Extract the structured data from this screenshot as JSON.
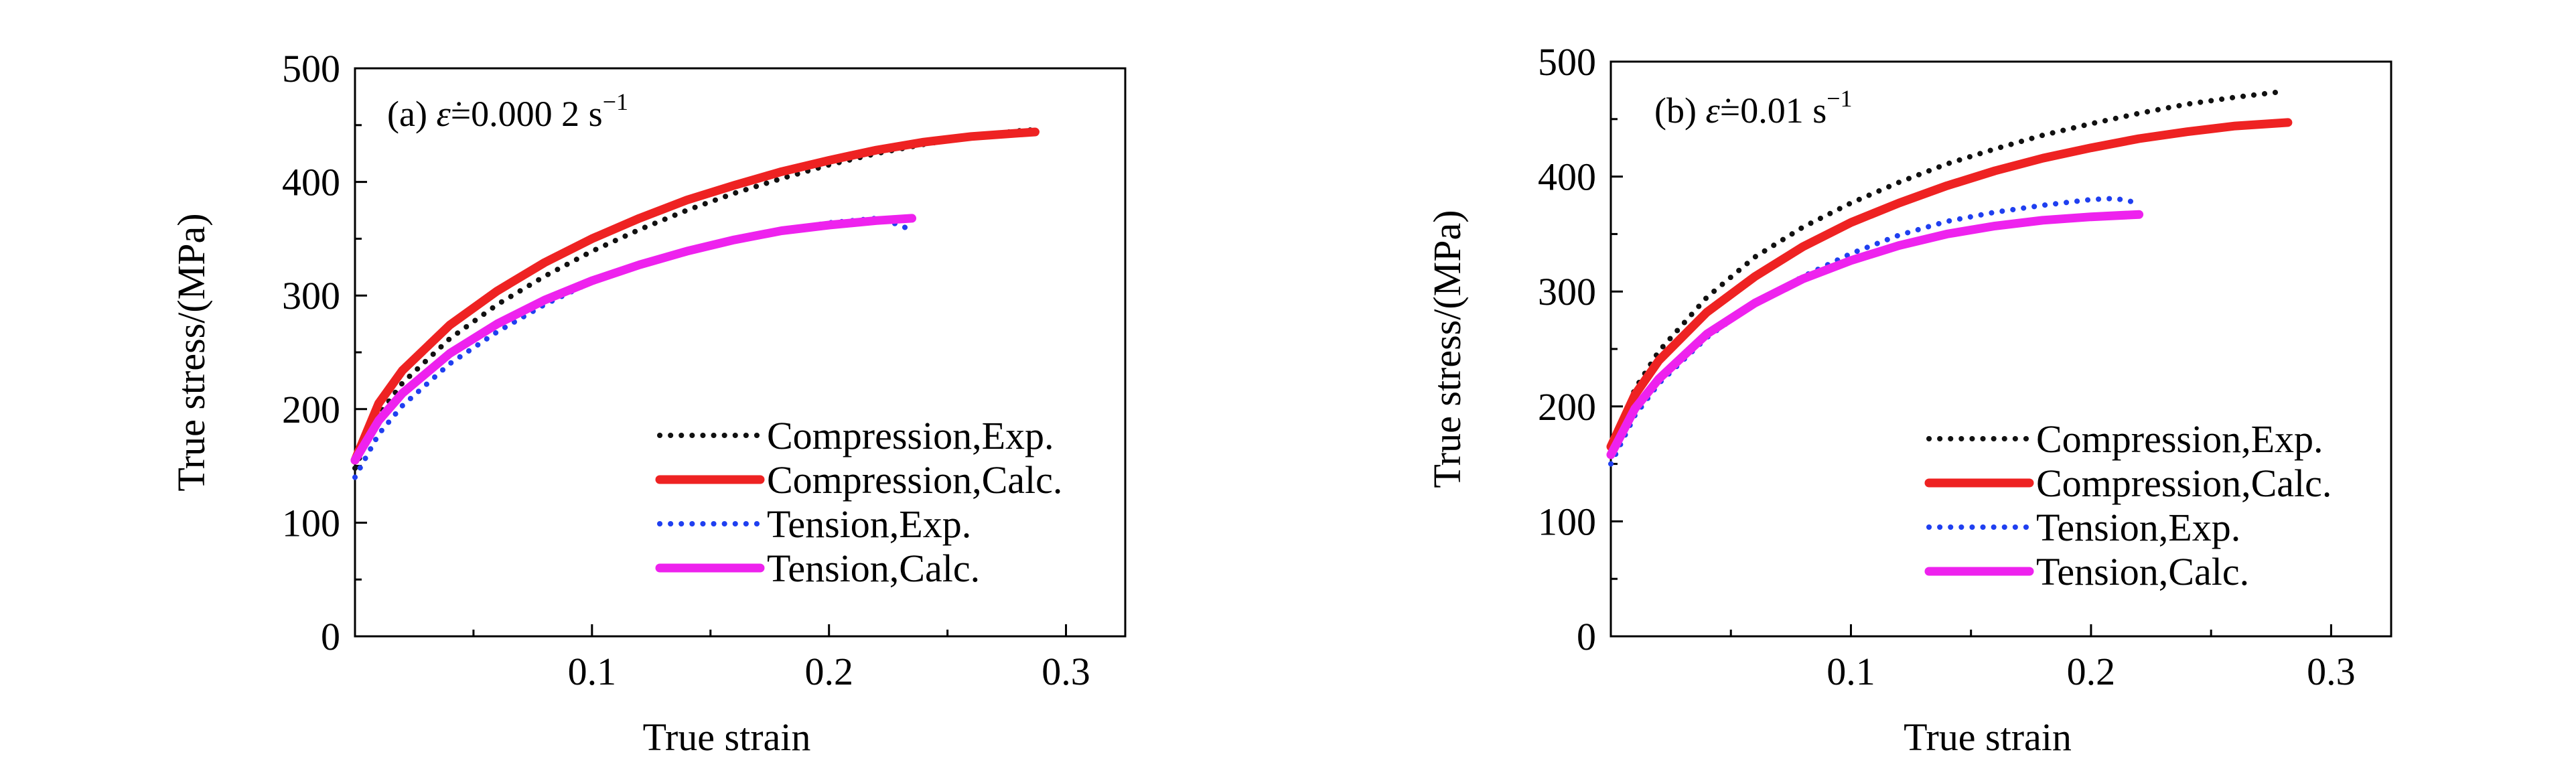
{
  "chart_data": [
    {
      "type": "line",
      "panel_label": "(a) ",
      "title_rate_symbol": "ε̇",
      "title_rate_value": "=0.000 2 s",
      "title_rate_exp": "−1",
      "xlabel": "True strain",
      "ylabel": "True stress/(MPa)",
      "xlim": [
        0,
        0.325
      ],
      "ylim": [
        0,
        500
      ],
      "xticks": [
        0.1,
        0.2,
        0.3
      ],
      "xtick_labels": [
        "0.1",
        "0.2",
        "0.3"
      ],
      "yticks": [
        0,
        100,
        200,
        300,
        400,
        500
      ],
      "ytick_labels": [
        "0",
        "100",
        "200",
        "300",
        "400",
        "500"
      ],
      "grid": false,
      "legend_position": "bottom-right",
      "series": [
        {
          "name": "Compression,Exp.",
          "style": "dotted",
          "color": "#111111",
          "x": [
            0.0,
            0.01,
            0.02,
            0.04,
            0.06,
            0.08,
            0.1,
            0.12,
            0.14,
            0.16,
            0.18,
            0.2,
            0.22,
            0.24,
            0.26,
            0.28,
            0.287
          ],
          "y": [
            148,
            195,
            223,
            262,
            292,
            317,
            339,
            358,
            375,
            390,
            403,
            415,
            425,
            433,
            440,
            445,
            446
          ]
        },
        {
          "name": "Compression,Calc.",
          "style": "solid",
          "color": "#ee2222",
          "x": [
            0.0,
            0.01,
            0.02,
            0.04,
            0.06,
            0.08,
            0.1,
            0.12,
            0.14,
            0.16,
            0.18,
            0.2,
            0.22,
            0.24,
            0.26,
            0.28,
            0.287
          ],
          "y": [
            155,
            205,
            234,
            274,
            304,
            329,
            350,
            368,
            384,
            397,
            409,
            419,
            428,
            435,
            440,
            443,
            444
          ]
        },
        {
          "name": "Tension,Exp.",
          "style": "dotted",
          "color": "#1f3ff0",
          "x": [
            0.0,
            0.01,
            0.02,
            0.04,
            0.06,
            0.08,
            0.1,
            0.12,
            0.14,
            0.16,
            0.18,
            0.2,
            0.22,
            0.23,
            0.234
          ],
          "y": [
            140,
            178,
            203,
            240,
            268,
            292,
            312,
            327,
            339,
            349,
            357,
            364,
            368,
            362,
            358
          ]
        },
        {
          "name": "Tension,Calc.",
          "style": "solid",
          "color": "#ee22ee",
          "x": [
            0.0,
            0.01,
            0.02,
            0.04,
            0.06,
            0.08,
            0.1,
            0.12,
            0.14,
            0.16,
            0.18,
            0.2,
            0.22,
            0.235
          ],
          "y": [
            155,
            190,
            214,
            249,
            275,
            296,
            313,
            327,
            339,
            349,
            357,
            362,
            366,
            368
          ]
        }
      ]
    },
    {
      "type": "line",
      "panel_label": "(b)  ",
      "title_rate_symbol": "ε̇",
      "title_rate_value": "=0.01 s",
      "title_rate_exp": "−1",
      "xlabel": "True strain",
      "ylabel": "True stress/(MPa)",
      "xlim": [
        0,
        0.325
      ],
      "ylim": [
        0,
        500
      ],
      "xticks": [
        0.1,
        0.2,
        0.3
      ],
      "xtick_labels": [
        "0.1",
        "0.2",
        "0.3"
      ],
      "yticks": [
        0,
        100,
        200,
        300,
        400,
        500
      ],
      "ytick_labels": [
        "0",
        "100",
        "200",
        "300",
        "400",
        "500"
      ],
      "grid": false,
      "legend_position": "bottom-right",
      "series": [
        {
          "name": "Compression,Exp.",
          "style": "dotted",
          "color": "#111111",
          "x": [
            0.0,
            0.01,
            0.02,
            0.04,
            0.06,
            0.08,
            0.1,
            0.12,
            0.14,
            0.16,
            0.18,
            0.2,
            0.22,
            0.24,
            0.26,
            0.28
          ],
          "y": [
            160,
            215,
            248,
            295,
            330,
            356,
            377,
            395,
            411,
            424,
            436,
            446,
            455,
            463,
            469,
            474
          ]
        },
        {
          "name": "Compression,Calc.",
          "style": "solid",
          "color": "#ee2222",
          "x": [
            0.0,
            0.01,
            0.02,
            0.04,
            0.06,
            0.08,
            0.1,
            0.12,
            0.14,
            0.16,
            0.18,
            0.2,
            0.22,
            0.24,
            0.26,
            0.282
          ],
          "y": [
            165,
            210,
            240,
            282,
            313,
            339,
            360,
            377,
            392,
            405,
            416,
            425,
            433,
            439,
            444,
            447
          ]
        },
        {
          "name": "Tension,Exp.",
          "style": "dotted",
          "color": "#1f3ff0",
          "x": [
            0.0,
            0.01,
            0.02,
            0.04,
            0.06,
            0.08,
            0.1,
            0.12,
            0.14,
            0.16,
            0.18,
            0.2,
            0.21,
            0.22
          ],
          "y": [
            150,
            192,
            220,
            260,
            290,
            313,
            333,
            349,
            361,
            369,
            375,
            380,
            381,
            377
          ]
        },
        {
          "name": "Tension,Calc.",
          "style": "solid",
          "color": "#ee22ee",
          "x": [
            0.0,
            0.01,
            0.02,
            0.04,
            0.06,
            0.08,
            0.1,
            0.12,
            0.14,
            0.16,
            0.18,
            0.2,
            0.22
          ],
          "y": [
            158,
            198,
            224,
            263,
            290,
            311,
            327,
            340,
            350,
            357,
            362,
            365,
            367
          ]
        }
      ]
    }
  ]
}
